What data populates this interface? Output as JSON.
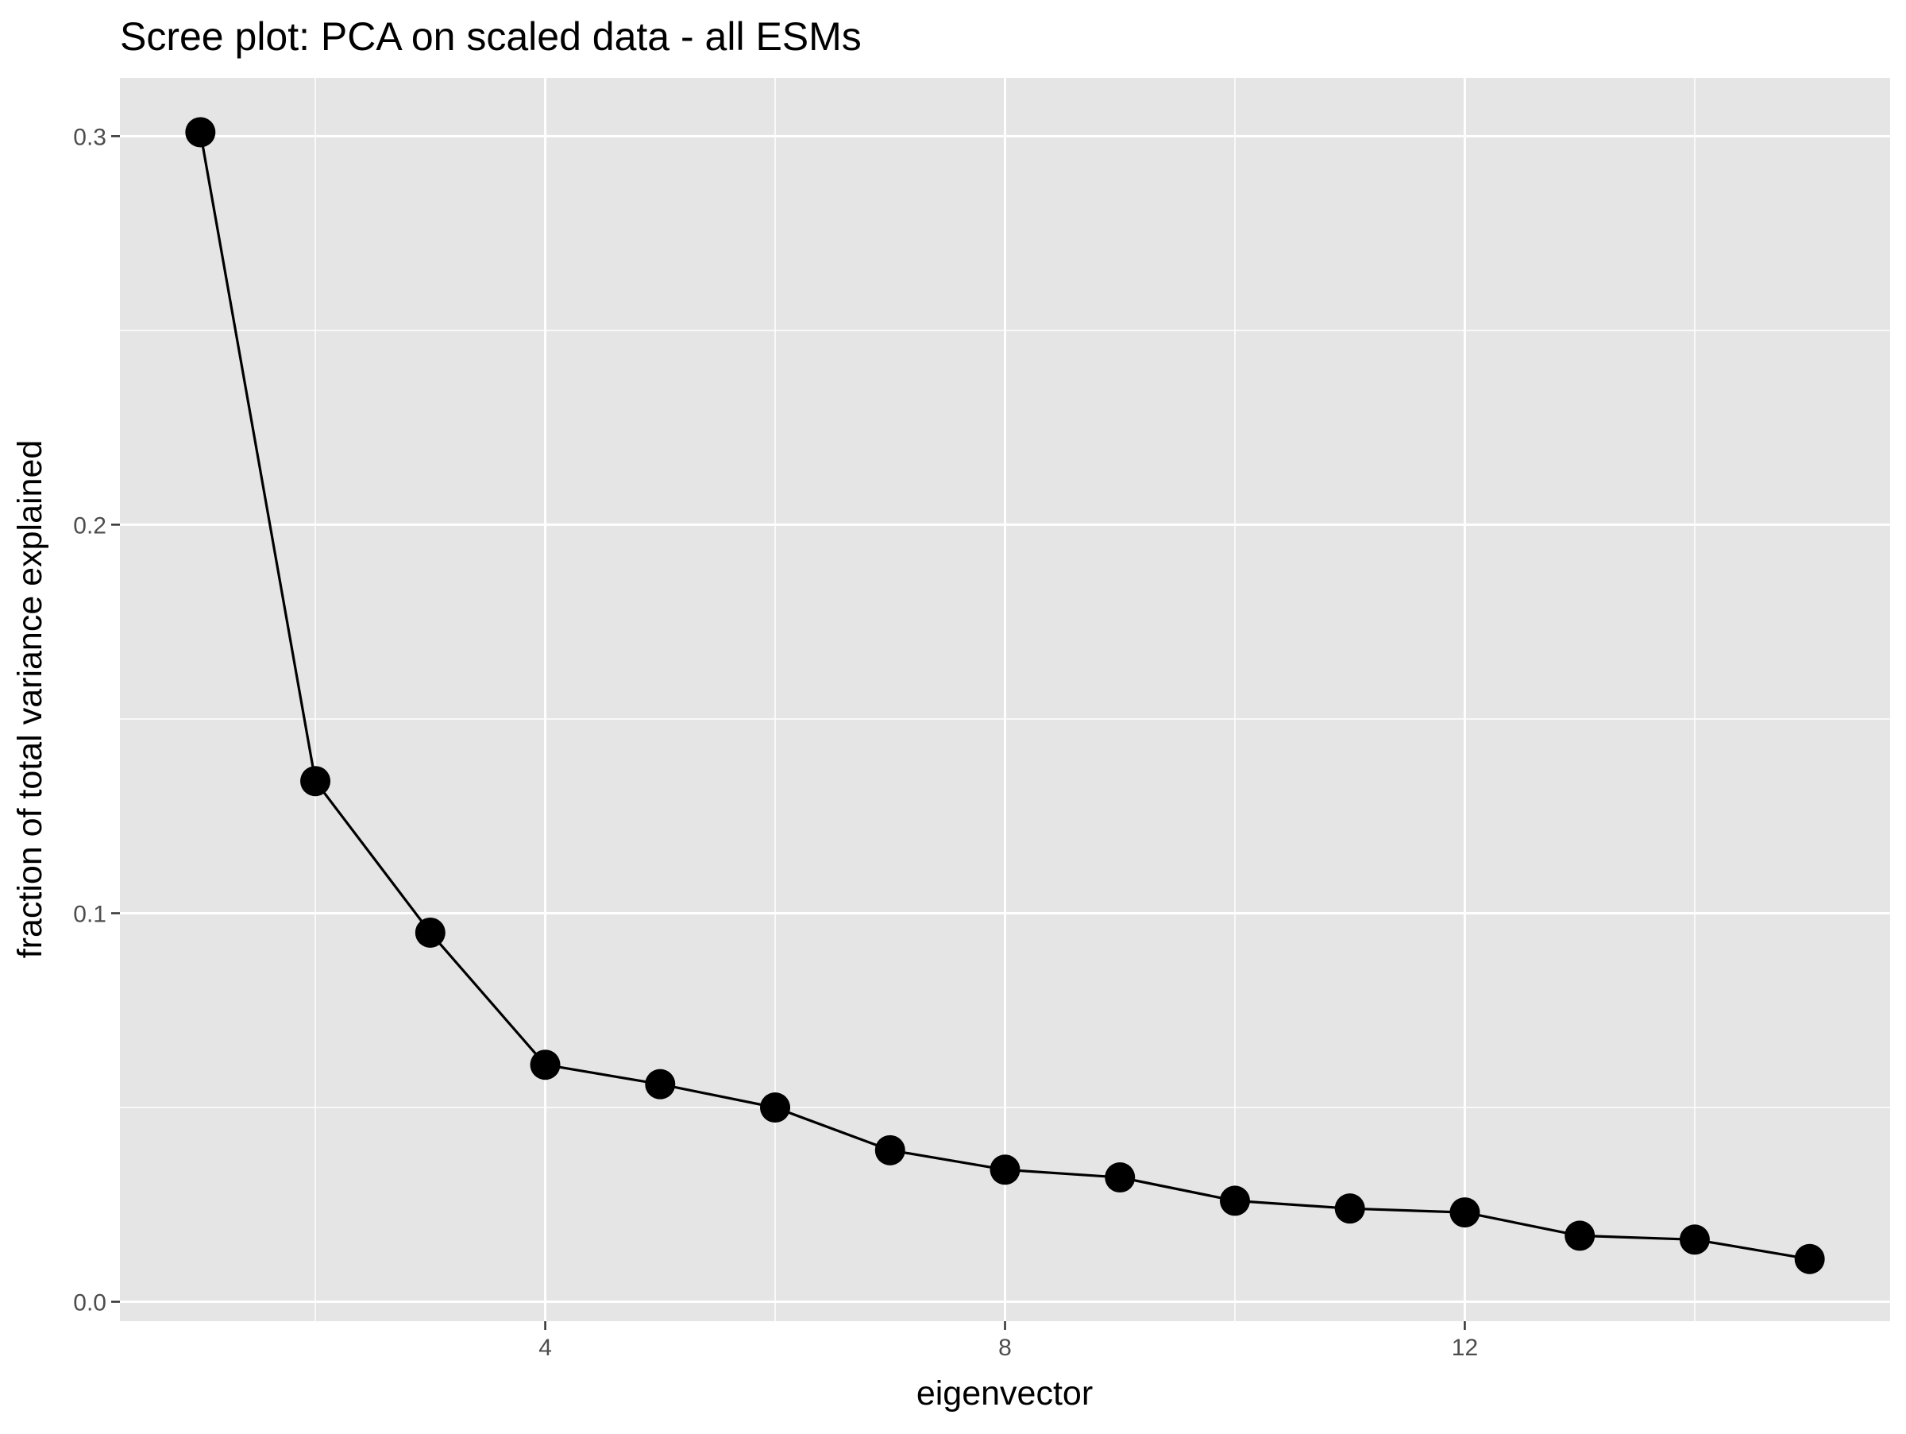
{
  "chart_data": {
    "type": "line",
    "title": "Scree plot: PCA on scaled data - all ESMs",
    "xlabel": "eigenvector",
    "ylabel": "fraction of total variance explained",
    "xlim": [
      0.3,
      15.7
    ],
    "ylim": [
      -0.005,
      0.315
    ],
    "x_ticks": [
      4,
      8,
      12
    ],
    "x_tick_labels": [
      "4",
      "8",
      "12"
    ],
    "x_minor_ticks": [
      2,
      6,
      10,
      14
    ],
    "y_ticks": [
      0.0,
      0.1,
      0.2,
      0.3
    ],
    "y_tick_labels": [
      "0.0",
      "0.1",
      "0.2",
      "0.3"
    ],
    "y_minor_ticks": [
      0.05,
      0.15,
      0.25
    ],
    "grid": true,
    "markers": true,
    "series": [
      {
        "x": [
          1,
          2,
          3,
          4,
          5,
          6,
          7,
          8,
          9,
          10,
          11,
          12,
          13,
          14,
          15
        ],
        "values": [
          0.301,
          0.134,
          0.095,
          0.061,
          0.056,
          0.05,
          0.039,
          0.034,
          0.032,
          0.026,
          0.024,
          0.023,
          0.017,
          0.016,
          0.011
        ]
      }
    ],
    "colors": {
      "panel_background": "#e5e5e5",
      "grid": "#ffffff",
      "line": "#000000",
      "point": "#000000",
      "tick_label": "#4d4d4d",
      "tick_mark": "#333333"
    }
  }
}
